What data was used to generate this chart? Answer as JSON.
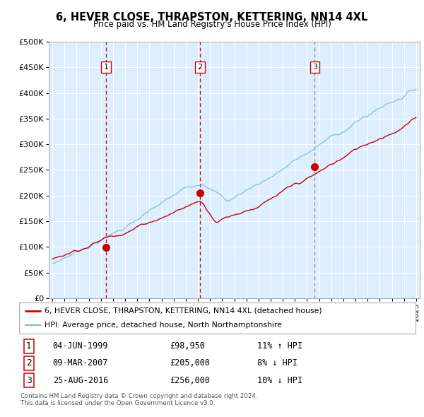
{
  "title": "6, HEVER CLOSE, THRAPSTON, KETTERING, NN14 4XL",
  "subtitle": "Price paid vs. HM Land Registry's House Price Index (HPI)",
  "legend_label_red": "6, HEVER CLOSE, THRAPSTON, KETTERING, NN14 4XL (detached house)",
  "legend_label_blue": "HPI: Average price, detached house, North Northamptonshire",
  "transactions": [
    {
      "num": 1,
      "date": "04-JUN-1999",
      "price": "£98,950",
      "pct": "11% ↑ HPI",
      "year": 1999.42,
      "price_val": 98950,
      "vline_color": "#cc0000",
      "vline_style": "--"
    },
    {
      "num": 2,
      "date": "09-MAR-2007",
      "price": "£205,000",
      "pct": "8% ↓ HPI",
      "year": 2007.18,
      "price_val": 205000,
      "vline_color": "#cc0000",
      "vline_style": "--"
    },
    {
      "num": 3,
      "date": "25-AUG-2016",
      "price": "£256,000",
      "pct": "10% ↓ HPI",
      "year": 2016.64,
      "price_val": 256000,
      "vline_color": "#888888",
      "vline_style": "--"
    }
  ],
  "footer1": "Contains HM Land Registry data © Crown copyright and database right 2024.",
  "footer2": "This data is licensed under the Open Government Licence v3.0.",
  "red_color": "#cc0000",
  "blue_color": "#7abadd",
  "background_color": "#ddeeff",
  "ylim": [
    0,
    500000
  ],
  "yticks": [
    0,
    50000,
    100000,
    150000,
    200000,
    250000,
    300000,
    350000,
    400000,
    450000,
    500000
  ],
  "xmin": 1994.7,
  "xmax": 2025.3
}
